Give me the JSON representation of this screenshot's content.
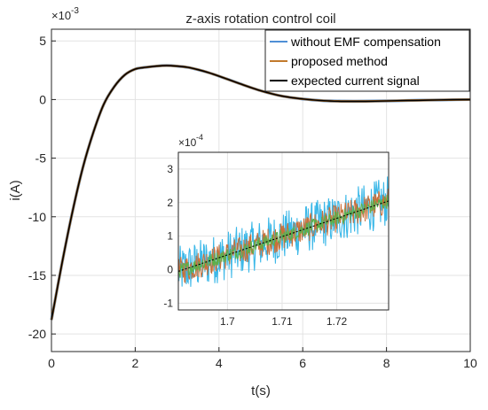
{
  "chart_data": [
    {
      "type": "line",
      "title": "z-axis rotation control coil",
      "xlabel": "t(s)",
      "ylabel": "i(A)",
      "y_exponent_label": "×10",
      "y_exponent_power": "-3",
      "xlim": [
        0,
        10
      ],
      "ylim": [
        -21.5,
        6
      ],
      "xticks": [
        0,
        2,
        4,
        6,
        8,
        10
      ],
      "xtick_labels": [
        "0",
        "2",
        "4",
        "6",
        "8",
        "10"
      ],
      "yticks": [
        -20,
        -15,
        -10,
        -5,
        0,
        5
      ],
      "ytick_labels": [
        "-20",
        "-15",
        "-10",
        "-5",
        "0",
        "5"
      ],
      "grid": true,
      "legend_position": "top-right",
      "x": [
        0,
        0.25,
        0.5,
        0.75,
        1.0,
        1.25,
        1.5,
        1.75,
        2.0,
        2.25,
        2.5,
        2.75,
        3.0,
        3.25,
        3.5,
        3.75,
        4.0,
        4.5,
        5.0,
        5.5,
        6.0,
        6.5,
        7.0,
        7.5,
        8.0,
        8.5,
        9.0,
        9.5,
        10.0
      ],
      "series": [
        {
          "name": "without EMF compensation",
          "color": "#4f8fd6",
          "values": [
            -18.8,
            -14.0,
            -9.6,
            -5.8,
            -2.8,
            -0.4,
            1.1,
            2.1,
            2.6,
            2.75,
            2.85,
            2.9,
            2.85,
            2.75,
            2.55,
            2.3,
            2.0,
            1.35,
            0.75,
            0.3,
            0.05,
            -0.1,
            -0.15,
            -0.15,
            -0.12,
            -0.08,
            -0.05,
            -0.02,
            0.0
          ]
        },
        {
          "name": "proposed method",
          "color": "#c27a2c",
          "values": [
            -18.8,
            -14.0,
            -9.6,
            -5.8,
            -2.8,
            -0.4,
            1.1,
            2.1,
            2.6,
            2.75,
            2.85,
            2.9,
            2.85,
            2.75,
            2.55,
            2.3,
            2.0,
            1.35,
            0.75,
            0.3,
            0.05,
            -0.1,
            -0.15,
            -0.15,
            -0.12,
            -0.08,
            -0.05,
            -0.02,
            0.0
          ]
        },
        {
          "name": "expected current signal",
          "color": "#000000",
          "values": [
            -18.8,
            -14.0,
            -9.6,
            -5.8,
            -2.8,
            -0.4,
            1.1,
            2.1,
            2.6,
            2.75,
            2.85,
            2.9,
            2.85,
            2.75,
            2.55,
            2.3,
            2.0,
            1.35,
            0.75,
            0.3,
            0.05,
            -0.1,
            -0.15,
            -0.15,
            -0.12,
            -0.08,
            -0.05,
            -0.02,
            0.0
          ]
        }
      ]
    },
    {
      "type": "line",
      "title": "",
      "xlabel": "",
      "ylabel": "",
      "y_exponent_label": "×10",
      "y_exponent_power": "-4",
      "xlim": [
        1.691,
        1.7295
      ],
      "ylim": [
        -1.2,
        3.5
      ],
      "xticks": [
        1.7,
        1.71,
        1.72
      ],
      "xtick_labels": [
        "1.7",
        "1.71",
        "1.72"
      ],
      "yticks": [
        -1,
        0,
        1,
        2,
        3
      ],
      "ytick_labels": [
        "-1",
        "0",
        "1",
        "2",
        "3"
      ],
      "grid": true,
      "noise_band": [
        {
          "color": "#3cb8e8",
          "amplitude": 0.75
        },
        {
          "color": "#c96f3a",
          "amplitude": 0.42
        },
        {
          "color": "#5ab04c",
          "amplitude": 0.22
        }
      ],
      "trend": {
        "color": "#000000",
        "x": [
          1.691,
          1.7295
        ],
        "values": [
          -0.05,
          2.05
        ]
      }
    }
  ]
}
